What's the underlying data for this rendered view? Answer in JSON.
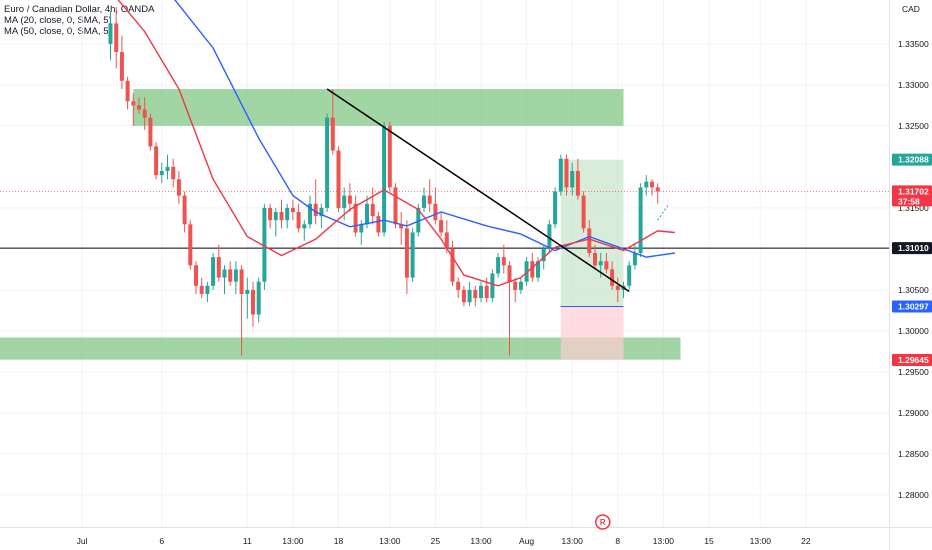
{
  "legend": {
    "title": "Euro / Canadian Dollar, 4h, OANDA",
    "ma20": "MA (20, close, 0, SMA, 5)",
    "ma50": "MA (50, close, 0, SMA, 5)"
  },
  "currency": "CAD",
  "colors": {
    "up": "#26a69a",
    "down": "#ef5350",
    "ma20": "#f23645",
    "ma50": "#2962ff",
    "zone": "#81c784",
    "target": "#c8e6c9",
    "stop": "#ffcdd2",
    "trendline": "#000000",
    "axis_text": "#131722"
  },
  "chart_data": {
    "type": "candlestick",
    "title": "Euro / Canadian Dollar, 4h, OANDA",
    "ylim": [
      1.2755,
      1.3395
    ],
    "y_ticks": [
      "1.28000",
      "1.28500",
      "1.29000",
      "1.29500",
      "1.30000",
      "1.30500",
      "1.31500",
      "1.32500",
      "1.33000",
      "1.33500"
    ],
    "y_tick_values": [
      1.28,
      1.285,
      1.29,
      1.295,
      1.3,
      1.305,
      1.315,
      1.325,
      1.33,
      1.335
    ],
    "x_ticks": [
      "Jul",
      "6",
      "11",
      "13:00",
      "18",
      "13:00",
      "25",
      "13:00",
      "Aug",
      "13:00",
      "8",
      "13:00",
      "15",
      "13:00",
      "22"
    ],
    "x_tick_index": [
      -5,
      9,
      24,
      32,
      40,
      49,
      57,
      65,
      73,
      81,
      89,
      97,
      105,
      114,
      122
    ],
    "price_tags": [
      {
        "label": "1.32088",
        "value": 1.32088,
        "color": "#26a69a"
      },
      {
        "label": "1.31702",
        "sub": "37:58",
        "value": 1.31702,
        "color": "#f23645"
      },
      {
        "label": "1.31010",
        "value": 1.3101,
        "color": "#131722"
      },
      {
        "label": "1.30297",
        "value": 1.30297,
        "color": "#2962ff"
      },
      {
        "label": "1.29645",
        "value": 1.29645,
        "color": "#f23645"
      }
    ],
    "candles": [
      [
        1.335,
        1.339,
        1.333,
        1.3375
      ],
      [
        1.3375,
        1.3395,
        1.332,
        1.334
      ],
      [
        1.334,
        1.336,
        1.3295,
        1.3305
      ],
      [
        1.3305,
        1.331,
        1.327,
        1.328
      ],
      [
        1.328,
        1.329,
        1.325,
        1.3275
      ],
      [
        1.3275,
        1.3285,
        1.3265,
        1.327
      ],
      [
        1.327,
        1.3285,
        1.3245,
        1.326
      ],
      [
        1.326,
        1.3265,
        1.322,
        1.3225
      ],
      [
        1.3225,
        1.323,
        1.3185,
        1.319
      ],
      [
        1.319,
        1.3205,
        1.318,
        1.3195
      ],
      [
        1.3195,
        1.3215,
        1.3185,
        1.32
      ],
      [
        1.32,
        1.321,
        1.3175,
        1.3185
      ],
      [
        1.3185,
        1.3195,
        1.3155,
        1.3165
      ],
      [
        1.3165,
        1.317,
        1.312,
        1.313
      ],
      [
        1.313,
        1.3135,
        1.3075,
        1.308
      ],
      [
        1.308,
        1.3085,
        1.3045,
        1.3055
      ],
      [
        1.3055,
        1.3065,
        1.304,
        1.3045
      ],
      [
        1.3045,
        1.306,
        1.3035,
        1.3055
      ],
      [
        1.3055,
        1.3095,
        1.305,
        1.309
      ],
      [
        1.309,
        1.3105,
        1.306,
        1.3065
      ],
      [
        1.3065,
        1.308,
        1.3045,
        1.3075
      ],
      [
        1.3075,
        1.3085,
        1.3055,
        1.306
      ],
      [
        1.306,
        1.3085,
        1.3045,
        1.3075
      ],
      [
        1.3075,
        1.308,
        1.297,
        1.3045
      ],
      [
        1.3045,
        1.3065,
        1.3015,
        1.305
      ],
      [
        1.305,
        1.306,
        1.3005,
        1.302
      ],
      [
        1.302,
        1.3065,
        1.301,
        1.306
      ],
      [
        1.306,
        1.3155,
        1.305,
        1.315
      ],
      [
        1.315,
        1.3155,
        1.3125,
        1.3135
      ],
      [
        1.3135,
        1.315,
        1.3115,
        1.3145
      ],
      [
        1.3145,
        1.316,
        1.3125,
        1.3135
      ],
      [
        1.3135,
        1.3155,
        1.3125,
        1.315
      ],
      [
        1.315,
        1.316,
        1.3135,
        1.3145
      ],
      [
        1.3145,
        1.3155,
        1.312,
        1.3125
      ],
      [
        1.3125,
        1.3135,
        1.311,
        1.313
      ],
      [
        1.313,
        1.3165,
        1.3125,
        1.3155
      ],
      [
        1.3155,
        1.3185,
        1.313,
        1.314
      ],
      [
        1.314,
        1.3155,
        1.3125,
        1.315
      ],
      [
        1.315,
        1.3265,
        1.3145,
        1.326
      ],
      [
        1.326,
        1.3295,
        1.3215,
        1.322
      ],
      [
        1.322,
        1.3225,
        1.3145,
        1.315
      ],
      [
        1.315,
        1.3175,
        1.3135,
        1.3165
      ],
      [
        1.3165,
        1.318,
        1.3145,
        1.3155
      ],
      [
        1.3155,
        1.3165,
        1.3115,
        1.312
      ],
      [
        1.312,
        1.3135,
        1.3105,
        1.313
      ],
      [
        1.313,
        1.3165,
        1.3125,
        1.3155
      ],
      [
        1.3155,
        1.3175,
        1.313,
        1.314
      ],
      [
        1.314,
        1.3145,
        1.3115,
        1.312
      ],
      [
        1.312,
        1.3255,
        1.3115,
        1.325
      ],
      [
        1.325,
        1.3255,
        1.317,
        1.3175
      ],
      [
        1.3175,
        1.318,
        1.3125,
        1.313
      ],
      [
        1.313,
        1.3145,
        1.3105,
        1.3125
      ],
      [
        1.3125,
        1.3135,
        1.3045,
        1.3065
      ],
      [
        1.3065,
        1.3125,
        1.306,
        1.312
      ],
      [
        1.312,
        1.3155,
        1.3115,
        1.315
      ],
      [
        1.315,
        1.3175,
        1.3145,
        1.3165
      ],
      [
        1.3165,
        1.3185,
        1.3145,
        1.3155
      ],
      [
        1.3155,
        1.3175,
        1.313,
        1.3135
      ],
      [
        1.3135,
        1.3145,
        1.3115,
        1.312
      ],
      [
        1.312,
        1.3135,
        1.3095,
        1.31
      ],
      [
        1.31,
        1.311,
        1.3055,
        1.306
      ],
      [
        1.306,
        1.3065,
        1.304,
        1.305
      ],
      [
        1.305,
        1.3055,
        1.303,
        1.3035
      ],
      [
        1.3035,
        1.306,
        1.303,
        1.305
      ],
      [
        1.305,
        1.3055,
        1.303,
        1.304
      ],
      [
        1.304,
        1.306,
        1.3035,
        1.3055
      ],
      [
        1.3055,
        1.3065,
        1.3035,
        1.304
      ],
      [
        1.304,
        1.3075,
        1.3035,
        1.307
      ],
      [
        1.307,
        1.3095,
        1.3065,
        1.309
      ],
      [
        1.309,
        1.3105,
        1.307,
        1.308
      ],
      [
        1.308,
        1.3085,
        1.297,
        1.306
      ],
      [
        1.306,
        1.3065,
        1.3035,
        1.305
      ],
      [
        1.305,
        1.3065,
        1.3045,
        1.306
      ],
      [
        1.306,
        1.309,
        1.3055,
        1.3085
      ],
      [
        1.3085,
        1.3095,
        1.306,
        1.3065
      ],
      [
        1.3065,
        1.309,
        1.306,
        1.3085
      ],
      [
        1.3085,
        1.3105,
        1.3075,
        1.31
      ],
      [
        1.31,
        1.3135,
        1.3095,
        1.313
      ],
      [
        1.313,
        1.3175,
        1.3125,
        1.317
      ],
      [
        1.317,
        1.3215,
        1.3165,
        1.321
      ],
      [
        1.321,
        1.3215,
        1.3165,
        1.3175
      ],
      [
        1.3175,
        1.3205,
        1.3165,
        1.3195
      ],
      [
        1.3195,
        1.321,
        1.316,
        1.3165
      ],
      [
        1.3165,
        1.317,
        1.312,
        1.3125
      ],
      [
        1.3125,
        1.3135,
        1.309,
        1.3095
      ],
      [
        1.3095,
        1.3105,
        1.3075,
        1.308
      ],
      [
        1.308,
        1.3095,
        1.3065,
        1.3085
      ],
      [
        1.3085,
        1.3095,
        1.307,
        1.3075
      ],
      [
        1.3075,
        1.3085,
        1.305,
        1.3055
      ],
      [
        1.3055,
        1.3065,
        1.3035,
        1.305
      ],
      [
        1.305,
        1.306,
        1.304,
        1.3055
      ],
      [
        1.3055,
        1.3085,
        1.305,
        1.308
      ],
      [
        1.308,
        1.3105,
        1.3075,
        1.3095
      ],
      [
        1.3095,
        1.318,
        1.309,
        1.3175
      ],
      [
        1.3175,
        1.319,
        1.3165,
        1.3182
      ],
      [
        1.3182,
        1.3185,
        1.3165,
        1.3175
      ],
      [
        1.3175,
        1.318,
        1.3155,
        1.317
      ]
    ],
    "ma20": [
      [
        0,
        1.3415
      ],
      [
        6,
        1.3365
      ],
      [
        12,
        1.3295
      ],
      [
        18,
        1.3185
      ],
      [
        24,
        1.3115
      ],
      [
        30,
        1.3092
      ],
      [
        36,
        1.3112
      ],
      [
        42,
        1.3148
      ],
      [
        48,
        1.3172
      ],
      [
        54,
        1.3148
      ],
      [
        58,
        1.3112
      ],
      [
        62,
        1.3068
      ],
      [
        68,
        1.3055
      ],
      [
        72,
        1.3065
      ],
      [
        78,
        1.3102
      ],
      [
        84,
        1.3112
      ],
      [
        90,
        1.3098
      ],
      [
        96,
        1.3122
      ],
      [
        99,
        1.312
      ]
    ],
    "ma50": [
      [
        10,
        1.3415
      ],
      [
        18,
        1.3345
      ],
      [
        26,
        1.3235
      ],
      [
        32,
        1.3165
      ],
      [
        36,
        1.3145
      ],
      [
        42,
        1.3127
      ],
      [
        48,
        1.3135
      ],
      [
        52,
        1.3128
      ],
      [
        58,
        1.3145
      ],
      [
        66,
        1.3128
      ],
      [
        72,
        1.3118
      ],
      [
        78,
        1.3098
      ],
      [
        84,
        1.3115
      ],
      [
        88,
        1.3105
      ],
      [
        94,
        1.309
      ],
      [
        99,
        1.3095
      ]
    ],
    "zones": [
      {
        "x0": 4,
        "x1": 90,
        "y0": 1.325,
        "y1": 1.3295
      },
      {
        "x0": -21,
        "x1": 100,
        "y0": 1.2965,
        "y1": 1.2992
      }
    ],
    "position": {
      "x0": 79,
      "x1": 90,
      "target": 1.32088,
      "entry": 1.30297,
      "stop": 1.29645
    },
    "trendline": {
      "x0": 38,
      "y0": 1.3295,
      "x1": 91,
      "y1": 1.3048
    },
    "horizontal_line": 1.3101,
    "projection": [
      [
        96,
        1.3135
      ],
      [
        98,
        1.3155
      ]
    ],
    "badge": "R"
  }
}
